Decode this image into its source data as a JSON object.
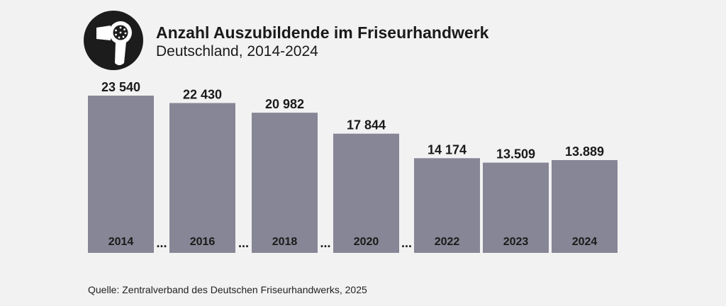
{
  "header": {
    "title": "Anzahl Auszubildende im Friseurhandwerk",
    "subtitle": "Deutschland, 2014-2024",
    "logo_icon": "hair-dryer-icon"
  },
  "chart_data": {
    "type": "bar",
    "categories": [
      "2014",
      "2016",
      "2018",
      "2020",
      "2022",
      "2023",
      "2024"
    ],
    "values": [
      23540,
      22430,
      20982,
      17844,
      14174,
      13509,
      13889
    ],
    "value_labels": [
      "23 540",
      "22 430",
      "20 982",
      "17 844",
      "14 174",
      "13.509",
      "13.889"
    ],
    "gap_marker": "...",
    "gaps_after": [
      0,
      1,
      2,
      3
    ],
    "ylim": [
      0,
      23540
    ],
    "grid": false,
    "legend": "none"
  },
  "colors": {
    "bar": "#878696",
    "background": "#f2f2f2",
    "text": "#1a1a1a"
  },
  "footer": {
    "source": "Quelle: Zentralverband des Deutschen Friseurhandwerks, 2025"
  }
}
